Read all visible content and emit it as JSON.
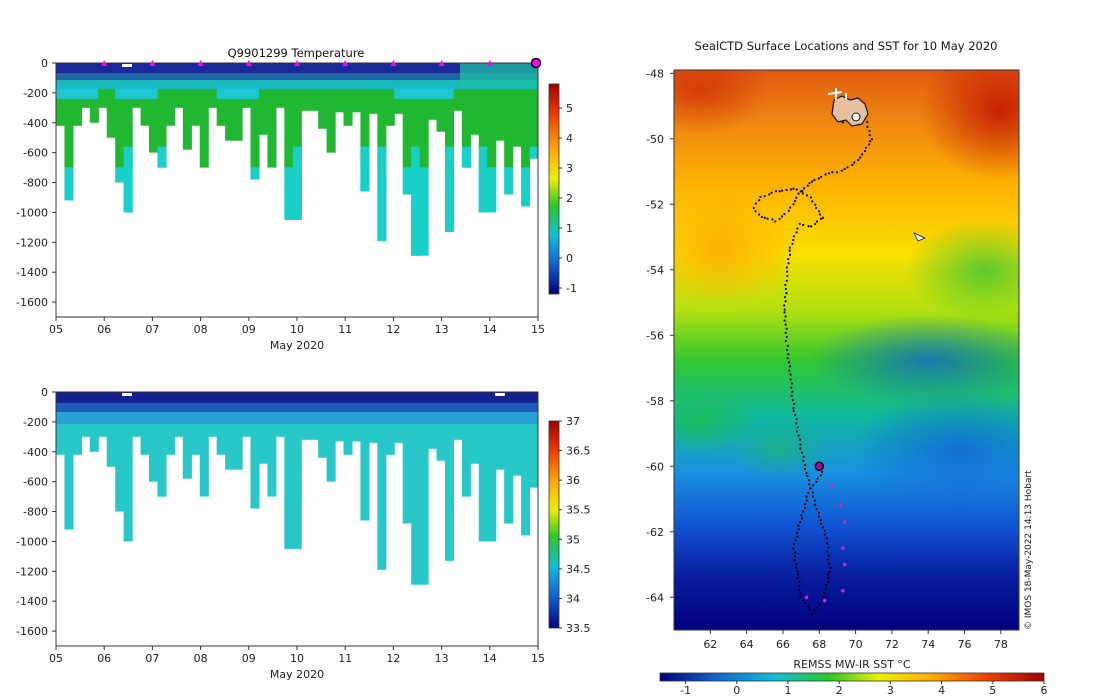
{
  "chart_data": [
    {
      "type": "heatmap",
      "id": "temperature-section",
      "title": "Q9901299  Temperature",
      "xlabel": "May 2020",
      "x_ticks": [
        "05",
        "06",
        "07",
        "08",
        "09",
        "10",
        "11",
        "12",
        "13",
        "14",
        "15"
      ],
      "x_values": [
        5,
        6,
        7,
        8,
        9,
        10,
        11,
        12,
        13,
        14,
        15
      ],
      "xlim": [
        5,
        15
      ],
      "y_ticks": [
        "0",
        "-200",
        "-400",
        "-600",
        "-800",
        "-1000",
        "-1200",
        "-1400",
        "-1600"
      ],
      "y_values": [
        0,
        -200,
        -400,
        -600,
        -800,
        -1000,
        -1200,
        -1400,
        -1600
      ],
      "ylim": [
        -1700,
        0
      ],
      "colorbar": {
        "ticks": [
          "5",
          "4",
          "3",
          "2",
          "1",
          "0",
          "-1"
        ],
        "tick_values": [
          5,
          4,
          3,
          2,
          1,
          0,
          -1
        ],
        "range": [
          -1.2,
          5.8
        ]
      },
      "profile_markers_day": [
        6,
        7,
        8,
        9,
        10,
        11,
        12,
        13,
        14
      ],
      "current_position_day": 15,
      "colors": {
        "surface": "#1a2a9a",
        "thermocline": "#1ec8e0",
        "deep": "#20b830",
        "bottom": "#18d0c8",
        "marker": "#ff00ff"
      }
    },
    {
      "type": "heatmap",
      "id": "salinity-section",
      "title": "",
      "xlabel": "May 2020",
      "x_ticks": [
        "05",
        "06",
        "07",
        "08",
        "09",
        "10",
        "11",
        "12",
        "13",
        "14",
        "15"
      ],
      "x_values": [
        5,
        6,
        7,
        8,
        9,
        10,
        11,
        12,
        13,
        14,
        15
      ],
      "xlim": [
        5,
        15
      ],
      "y_ticks": [
        "0",
        "-200",
        "-400",
        "-600",
        "-800",
        "-1000",
        "-1200",
        "-1400",
        "-1600"
      ],
      "y_values": [
        0,
        -200,
        -400,
        -600,
        -800,
        -1000,
        -1200,
        -1400,
        -1600
      ],
      "ylim": [
        -1700,
        0
      ],
      "colorbar": {
        "ticks": [
          "37",
          "36.5",
          "36",
          "35.5",
          "35",
          "34.5",
          "34",
          "33.5"
        ],
        "tick_values": [
          37,
          36.5,
          36,
          35.5,
          35,
          34.5,
          34,
          33.5
        ],
        "range": [
          33.5,
          37
        ]
      },
      "colors": {
        "surface": "#122090",
        "mid": "#2a9ad8",
        "deep": "#28c8c8"
      }
    },
    {
      "type": "heatmap",
      "id": "sst-map",
      "title": "SealCTD Surface Locations and SST for 10 May 2020",
      "x_ticks": [
        "62",
        "64",
        "66",
        "68",
        "70",
        "72",
        "74",
        "76",
        "78"
      ],
      "x_values": [
        62,
        64,
        66,
        68,
        70,
        72,
        74,
        76,
        78
      ],
      "xlim": [
        60,
        79
      ],
      "y_ticks": [
        "-48",
        "-50",
        "-52",
        "-54",
        "-56",
        "-58",
        "-60",
        "-62",
        "-64"
      ],
      "y_values": [
        -48,
        -50,
        -52,
        -54,
        -56,
        -58,
        -60,
        -62,
        -64
      ],
      "ylim": [
        -65,
        -47.9
      ],
      "colorbar_label": "REMSS MW-IR SST °C",
      "colorbar": {
        "ticks": [
          "-1",
          "0",
          "1",
          "2",
          "3",
          "4",
          "5",
          "6"
        ],
        "tick_values": [
          -1,
          0,
          1,
          2,
          3,
          4,
          5,
          6
        ],
        "range": [
          -1.5,
          6
        ]
      },
      "credit": "© IMOS 18-May-2022 14:13 Hobart",
      "current_position": {
        "lon": 68.0,
        "lat": -60.0
      },
      "recent_positions": [
        {
          "lon": 68.7,
          "lat": -60.6
        },
        {
          "lon": 69.2,
          "lat": -61.2
        },
        {
          "lon": 69.4,
          "lat": -61.7
        },
        {
          "lon": 69.3,
          "lat": -62.5
        },
        {
          "lon": 69.4,
          "lat": -63.0
        },
        {
          "lon": 69.3,
          "lat": -63.8
        },
        {
          "lon": 68.3,
          "lat": -64.1
        },
        {
          "lon": 67.3,
          "lat": -64.0
        }
      ],
      "track": [
        {
          "lon": 68.2,
          "lat": -60.2
        },
        {
          "lon": 67.4,
          "lat": -60.8
        },
        {
          "lon": 67.0,
          "lat": -61.6
        },
        {
          "lon": 66.6,
          "lat": -62.5
        },
        {
          "lon": 66.8,
          "lat": -63.3
        },
        {
          "lon": 67.0,
          "lat": -64.0
        },
        {
          "lon": 67.6,
          "lat": -64.5
        },
        {
          "lon": 68.2,
          "lat": -64.1
        },
        {
          "lon": 68.6,
          "lat": -63.2
        },
        {
          "lon": 68.4,
          "lat": -62.2
        },
        {
          "lon": 67.8,
          "lat": -61.2
        },
        {
          "lon": 67.3,
          "lat": -60.2
        },
        {
          "lon": 66.9,
          "lat": -59.2
        },
        {
          "lon": 66.6,
          "lat": -58.2
        },
        {
          "lon": 66.4,
          "lat": -57.2
        },
        {
          "lon": 66.2,
          "lat": -56.2
        },
        {
          "lon": 66.1,
          "lat": -55.2
        },
        {
          "lon": 66.2,
          "lat": -54.2
        },
        {
          "lon": 66.4,
          "lat": -53.3
        },
        {
          "lon": 66.9,
          "lat": -52.6
        },
        {
          "lon": 67.6,
          "lat": -52.7
        },
        {
          "lon": 68.2,
          "lat": -52.4
        },
        {
          "lon": 67.5,
          "lat": -51.8
        },
        {
          "lon": 66.6,
          "lat": -51.5
        },
        {
          "lon": 65.6,
          "lat": -51.6
        },
        {
          "lon": 64.8,
          "lat": -51.8
        },
        {
          "lon": 64.4,
          "lat": -52.1
        },
        {
          "lon": 64.8,
          "lat": -52.4
        },
        {
          "lon": 65.6,
          "lat": -52.5
        },
        {
          "lon": 66.3,
          "lat": -52.2
        },
        {
          "lon": 66.9,
          "lat": -51.7
        },
        {
          "lon": 67.6,
          "lat": -51.3
        },
        {
          "lon": 68.3,
          "lat": -51.1
        },
        {
          "lon": 69.0,
          "lat": -51.0
        },
        {
          "lon": 69.8,
          "lat": -50.8
        },
        {
          "lon": 70.4,
          "lat": -50.5
        },
        {
          "lon": 70.9,
          "lat": -50.0
        },
        {
          "lon": 70.6,
          "lat": -49.5
        },
        {
          "lon": 70.2,
          "lat": -49.0
        },
        {
          "lon": 69.6,
          "lat": -49.2
        },
        {
          "lon": 69.2,
          "lat": -49.6
        }
      ],
      "colors": {
        "track": "#000000",
        "recent": "#d020d0",
        "current": "#b000b0"
      }
    }
  ]
}
